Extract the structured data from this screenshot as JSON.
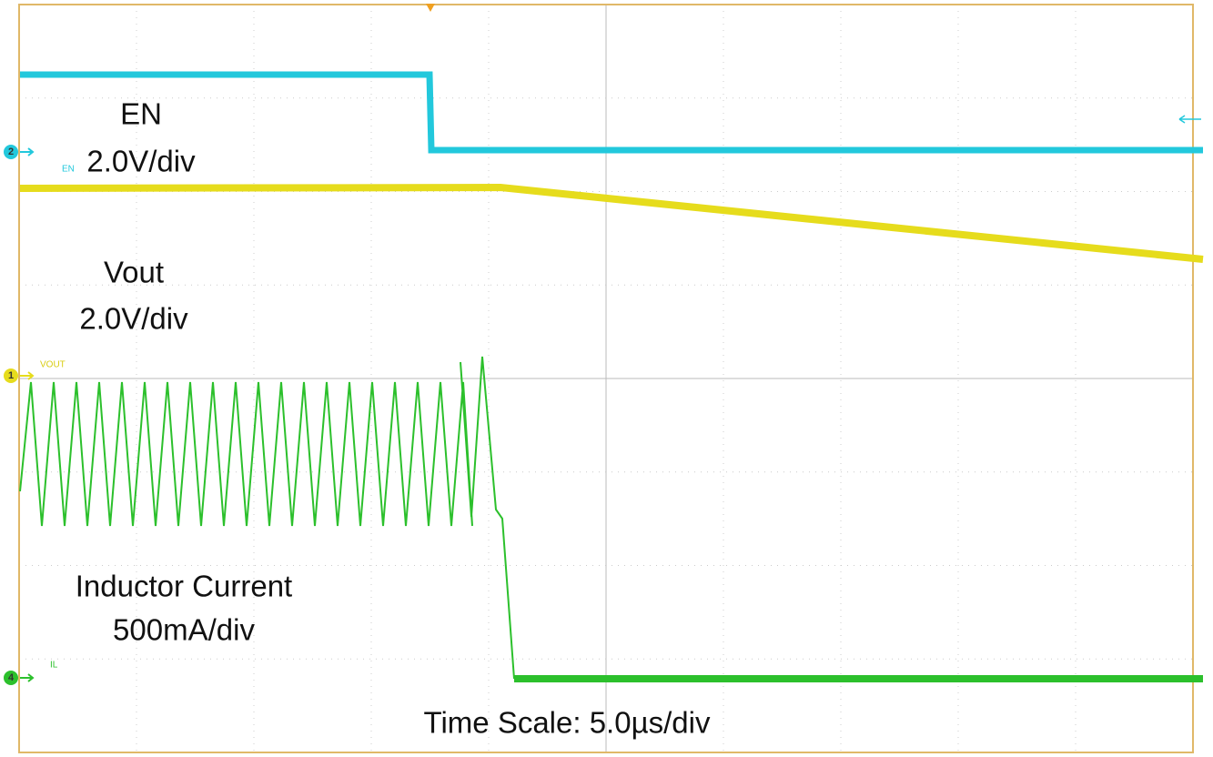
{
  "channels": [
    {
      "marker": "2",
      "tag": "EN",
      "name": "EN",
      "scale": "2.0V/div"
    },
    {
      "marker": "1",
      "tag": "VOUT",
      "name": "Vout",
      "scale": "2.0V/div"
    },
    {
      "marker": "4",
      "tag": "IL",
      "name": "Inductor Current",
      "scale": "500mA/div"
    }
  ],
  "time_scale": "Time Scale: 5.0µs/div"
}
